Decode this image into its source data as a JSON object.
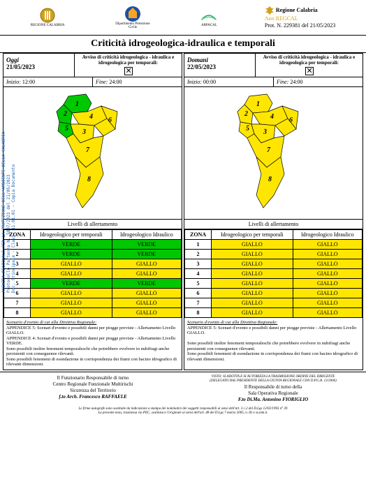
{
  "protocol": {
    "region": "Regione Calabria",
    "aoo": "Aoo REGCAL",
    "ref": "Prot. N. 229381 del 21/05/2023"
  },
  "logos": {
    "l1": "REGIONE CALABRIA",
    "l2": "Dipartimento Protezione Civile",
    "l3": "ARPACAL"
  },
  "title": "Criticità idrogeologica-idraulica e temporali",
  "avviso_label": "Avviso di criticità idrogeologica - idraulica e idrogeologica per temporali:",
  "today": {
    "label": "Oggi",
    "date": "21/05/2023",
    "inizio_label": "Inizio:",
    "inizio": "12:00",
    "fine_label": "Fine:",
    "fine": "24:00"
  },
  "tomorrow": {
    "label": "Domani",
    "date": "22/05/2023",
    "inizio_label": "Inizio:",
    "inizio": "00:00",
    "fine_label": "Fine:",
    "fine": "24:00"
  },
  "table": {
    "title": "Livelli di allertamento",
    "zona": "ZONA",
    "col1": "Idrogeologico per temporali",
    "col2": "Idrogeologico Idraulico"
  },
  "levels": {
    "verde": "VERDE",
    "giallo": "GIALLO"
  },
  "today_rows": [
    {
      "z": "1",
      "c1": "VERDE",
      "c2": "VERDE",
      "s1": "verde",
      "s2": "verde"
    },
    {
      "z": "2",
      "c1": "VERDE",
      "c2": "VERDE",
      "s1": "verde",
      "s2": "verde"
    },
    {
      "z": "3",
      "c1": "GIALLO",
      "c2": "GIALLO",
      "s1": "giallo",
      "s2": "giallo"
    },
    {
      "z": "4",
      "c1": "GIALLO",
      "c2": "GIALLO",
      "s1": "giallo",
      "s2": "giallo"
    },
    {
      "z": "5",
      "c1": "VERDE",
      "c2": "VERDE",
      "s1": "verde",
      "s2": "verde"
    },
    {
      "z": "6",
      "c1": "GIALLO",
      "c2": "GIALLO",
      "s1": "giallo",
      "s2": "giallo"
    },
    {
      "z": "7",
      "c1": "GIALLO",
      "c2": "GIALLO",
      "s1": "giallo",
      "s2": "giallo"
    },
    {
      "z": "8",
      "c1": "GIALLO",
      "c2": "GIALLO",
      "s1": "giallo",
      "s2": "giallo"
    }
  ],
  "tomorrow_rows": [
    {
      "z": "1",
      "c1": "GIALLO",
      "c2": "GIALLO",
      "s1": "giallo",
      "s2": "giallo"
    },
    {
      "z": "2",
      "c1": "GIALLO",
      "c2": "GIALLO",
      "s1": "giallo",
      "s2": "giallo"
    },
    {
      "z": "3",
      "c1": "GIALLO",
      "c2": "GIALLO",
      "s1": "giallo",
      "s2": "giallo"
    },
    {
      "z": "4",
      "c1": "GIALLO",
      "c2": "GIALLO",
      "s1": "giallo",
      "s2": "giallo"
    },
    {
      "z": "5",
      "c1": "GIALLO",
      "c2": "GIALLO",
      "s1": "giallo",
      "s2": "giallo"
    },
    {
      "z": "6",
      "c1": "GIALLO",
      "c2": "GIALLO",
      "s1": "giallo",
      "s2": "giallo"
    },
    {
      "z": "7",
      "c1": "GIALLO",
      "c2": "GIALLO",
      "s1": "giallo",
      "s2": "giallo"
    },
    {
      "z": "8",
      "c1": "GIALLO",
      "c2": "GIALLO",
      "s1": "giallo",
      "s2": "giallo"
    }
  ],
  "colors": {
    "verde": "#00c800",
    "giallo": "#ffe600"
  },
  "scenario": {
    "title": "Scenario d'evento di cui alla Direttiva Regionale:",
    "app5": "APPENDICE 5: Scenari d'evento e possibili danni per piogge previste - Allertamento Livello GIALLO.",
    "app4": "APPENDICE 4: Scenari d'evento e possibili danni per piogge previste - Allertamento Livello VERDE.",
    "note1": "Sono possibili inoltre fenomeni temporaleschi che potrebbero evolvere in nubifragi anche persistenti con conseguenze rilevanti.",
    "note2": "Sono possibili fenomeni di esondazione in corrispondenza dei fiumi con bacino idrografico di rilevanti dimensioni."
  },
  "footer": {
    "left_role": "Il Funzionario Responsabile di turno",
    "left_org1": "Centro Regionale Funzionale Multirischi",
    "left_org2": "Sicurezza del Territorio",
    "left_name": "f.to  Arch. Francesco RAFFAELE",
    "right_pre1": "VISTO: SI ADOTTA E SI AUTORIZZA LA TRASMISSIONE ORDINE DEL DIRIGENTE",
    "right_pre2": "(DELEGATO DAL PRESIDENTE DELLA GIUNTA REGIONALE CON D.P.G.R. 13/2006)",
    "right_role": "Il Responsabile di turno della",
    "right_org": "Sala Operativa Regionale",
    "right_name": "F.to Di.Ma. Antonino FIORIGLIO",
    "bottom1": "Le firme autografe sono sostituite da indicazione a stampa dei nominativi dei soggetti responsabili ai sensi dell'art. 3 c.2 del D.Lgs 12/02/1993 n° 39",
    "bottom2": "La presente nota, trasmessa via PEC, sostituisce l'originale ai sensi dell'art. 48 del D.Lgs 7 marzo 2005, n. 82 e ss.mm.ii."
  },
  "sidebar": {
    "l1": "AGENZIA REGIONALE PER LA PROTEZIONE DELL'AMBIENTE DELLA CALABRIA",
    "l2": "Protocollo Partenza N. 5807/2023 del 21/05/2023",
    "l3": "Doc. Principale - Class. 11.01.01 - Copia Documento"
  },
  "map_zones": {
    "outline_color": "#000000",
    "today_colors": {
      "1": "#00c800",
      "2": "#00c800",
      "3": "#ffe600",
      "4": "#ffe600",
      "5": "#00c800",
      "6": "#ffe600",
      "7": "#ffe600",
      "8": "#ffe600"
    },
    "tomorrow_colors": {
      "1": "#ffe600",
      "2": "#ffe600",
      "3": "#ffe600",
      "4": "#ffe600",
      "5": "#ffe600",
      "6": "#ffe600",
      "7": "#ffe600",
      "8": "#ffe600"
    }
  }
}
